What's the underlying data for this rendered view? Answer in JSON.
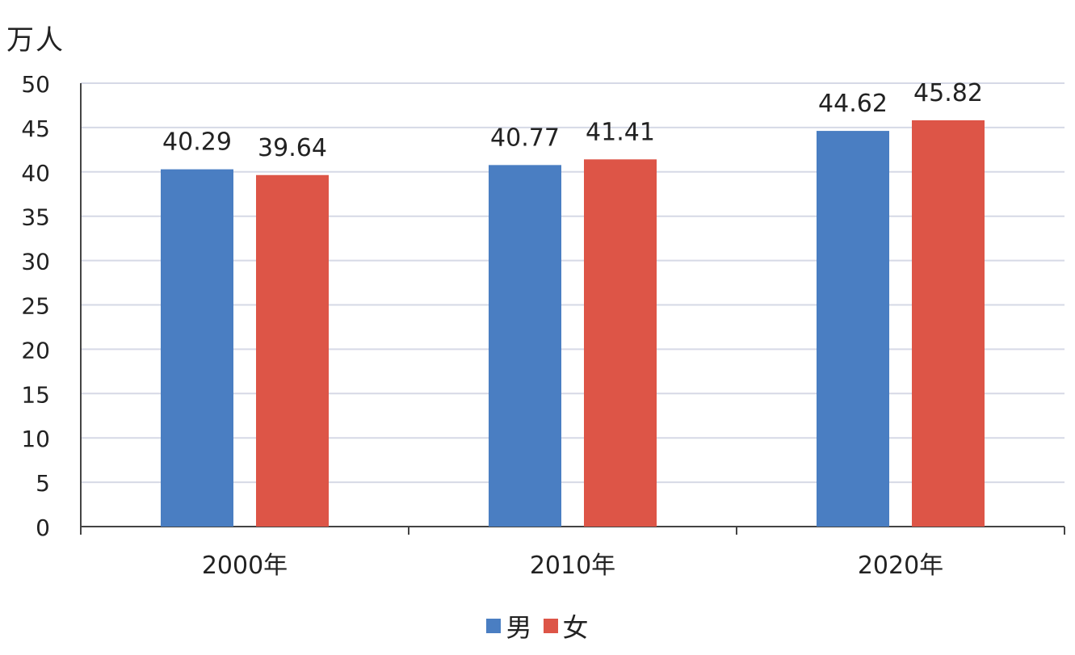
{
  "chart_data": {
    "type": "bar",
    "unit": "万人",
    "categories": [
      "2000年",
      "2010年",
      "2020年"
    ],
    "series": [
      {
        "name": "男",
        "values": [
          40.29,
          40.77,
          44.62
        ],
        "labels": [
          "40.29",
          "40.77",
          "44.62"
        ],
        "color": "#4a7ec2"
      },
      {
        "name": "女",
        "values": [
          39.64,
          41.41,
          45.82
        ],
        "labels": [
          "39.64",
          "41.41",
          "45.82"
        ],
        "color": "#dd5547"
      }
    ],
    "yticks": [
      "0",
      "5",
      "10",
      "15",
      "20",
      "25",
      "30",
      "35",
      "40",
      "45",
      "50"
    ],
    "ylim": [
      0,
      50
    ],
    "grid": true,
    "legend_position": "bottom"
  }
}
